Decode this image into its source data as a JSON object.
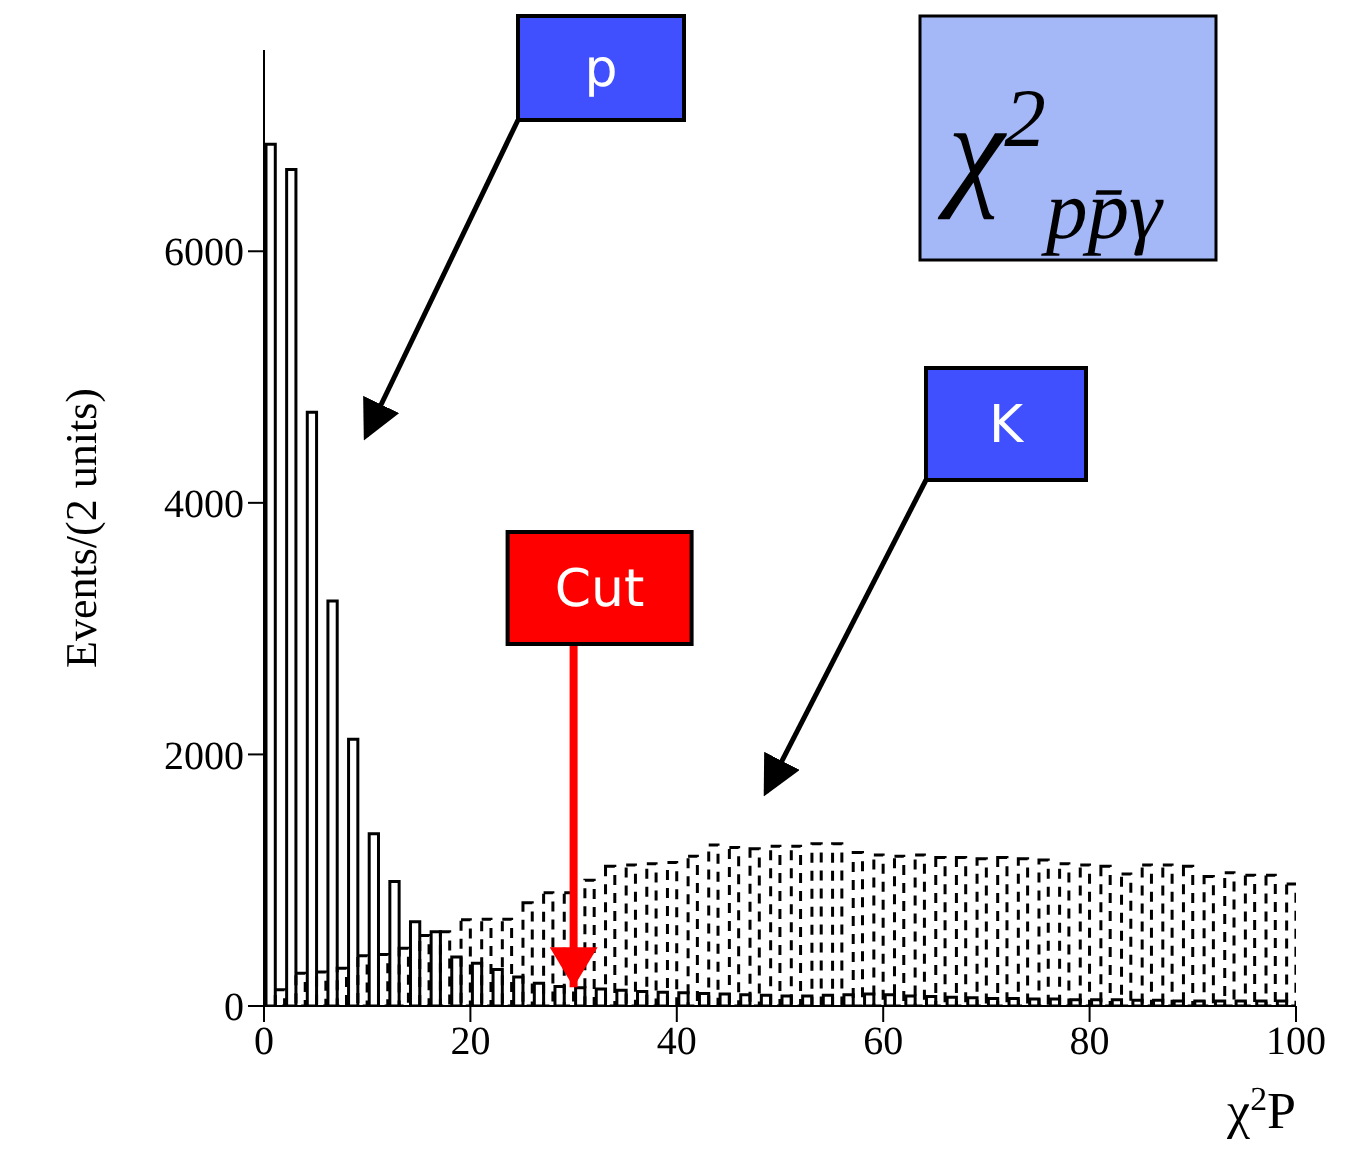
{
  "chart_data": {
    "type": "histogram",
    "ylabel": "Events/(2 units)",
    "xlabel": "χ$^{2}$P",
    "bins": [
      0,
      2,
      4,
      6,
      8,
      10,
      12,
      14,
      16,
      18,
      20,
      22,
      24,
      26,
      28,
      30,
      32,
      34,
      36,
      38,
      40,
      42,
      44,
      46,
      48,
      50,
      52,
      54,
      56,
      58,
      60,
      62,
      64,
      66,
      68,
      70,
      72,
      74,
      76,
      78,
      80,
      82,
      84,
      86,
      88,
      90,
      92,
      94,
      96,
      98,
      100
    ],
    "series": [
      {
        "name": "p",
        "color": "#000000",
        "line_style": "solid",
        "values": [
          6850,
          6650,
          4720,
          3220,
          2120,
          1370,
          990,
          670,
          590,
          390,
          340,
          290,
          230,
          180,
          155,
          145,
          135,
          125,
          115,
          110,
          105,
          100,
          95,
          90,
          85,
          80,
          80,
          85,
          90,
          95,
          90,
          80,
          75,
          70,
          65,
          60,
          60,
          55,
          55,
          50,
          50,
          50,
          45,
          45,
          40,
          40,
          40,
          40,
          40,
          40
        ]
      },
      {
        "name": "K",
        "color": "#000000",
        "line_style": "dashed",
        "values": [
          130,
          260,
          270,
          300,
          400,
          410,
          460,
          560,
          590,
          685,
          690,
          690,
          820,
          900,
          900,
          1000,
          1110,
          1120,
          1130,
          1140,
          1190,
          1280,
          1260,
          1250,
          1270,
          1270,
          1290,
          1290,
          1220,
          1200,
          1190,
          1200,
          1180,
          1180,
          1170,
          1180,
          1170,
          1160,
          1130,
          1120,
          1110,
          1050,
          1120,
          1120,
          1110,
          1030,
          1060,
          1040,
          1040,
          970
        ]
      }
    ],
    "xlim": [
      0,
      100
    ],
    "xticks": [
      0,
      20,
      40,
      60,
      80,
      100
    ],
    "ylim": [
      0,
      7600
    ],
    "yticks": [
      0,
      2000,
      4000,
      6000
    ],
    "annotations": [
      "χ$^{2}$$_{pp̄γ}$",
      {
        "text": "Cut",
        "x": 30,
        "y": 150
      }
    ]
  }
}
